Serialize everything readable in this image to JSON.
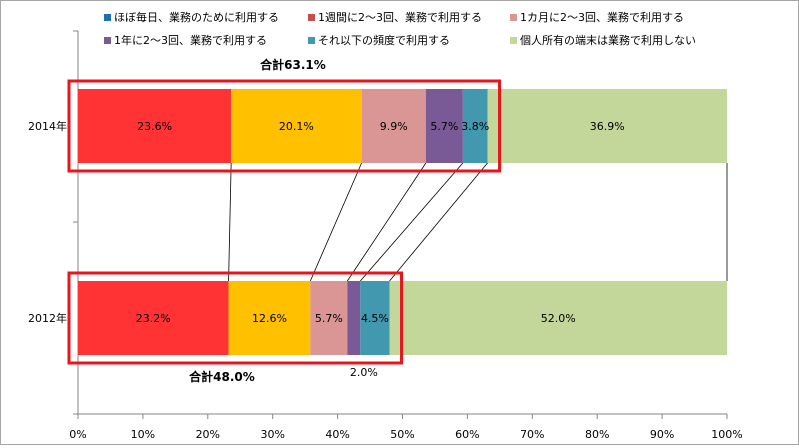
{
  "chart_data": {
    "type": "bar",
    "orientation": "horizontal",
    "stacked": true,
    "categories": [
      "2014年",
      "2012年"
    ],
    "series": [
      {
        "name": "ほぼ毎日、業務のために利用する",
        "color": "#ff3333",
        "values": [
          23.6,
          23.2
        ]
      },
      {
        "name": "1週間に2～3回、業務で利用する",
        "color": "#ffc000",
        "values": [
          20.1,
          12.6
        ]
      },
      {
        "name": "1カ月に2～3回、業務で利用する",
        "color": "#da9694",
        "values": [
          9.9,
          5.7
        ]
      },
      {
        "name": "1年に2～3回、業務で利用する",
        "color": "#7a5a96",
        "values": [
          5.7,
          2.0
        ]
      },
      {
        "name": "それ以下の頻度で利用する",
        "color": "#4198af",
        "values": [
          3.8,
          4.5
        ]
      },
      {
        "name": "個人所有の端末は業務で利用しない",
        "color": "#c4d79b",
        "values": [
          36.9,
          52.0
        ]
      }
    ],
    "legend_colors": [
      "#1f6fb4",
      "#c0504d",
      "#da9694",
      "#7a5a96",
      "#4198af",
      "#c4d79b"
    ],
    "data_labels": [
      [
        "23.6%",
        "20.1%",
        "9.9%",
        "5.7%",
        "3.8%",
        "36.9%"
      ],
      [
        "23.2%",
        "12.6%",
        "5.7%",
        "2.0%",
        "4.5%",
        "52.0%"
      ]
    ],
    "xlim": [
      0,
      100
    ],
    "x_ticks": [
      "0%",
      "10%",
      "20%",
      "30%",
      "40%",
      "50%",
      "60%",
      "70%",
      "80%",
      "90%",
      "100%"
    ],
    "legend_position": "top",
    "grid": false,
    "annotations": [
      {
        "text": "合計63.1%",
        "category": "2014年"
      },
      {
        "text": "合計48.0%",
        "category": "2012年"
      }
    ],
    "highlight_color": "#e8161b"
  }
}
